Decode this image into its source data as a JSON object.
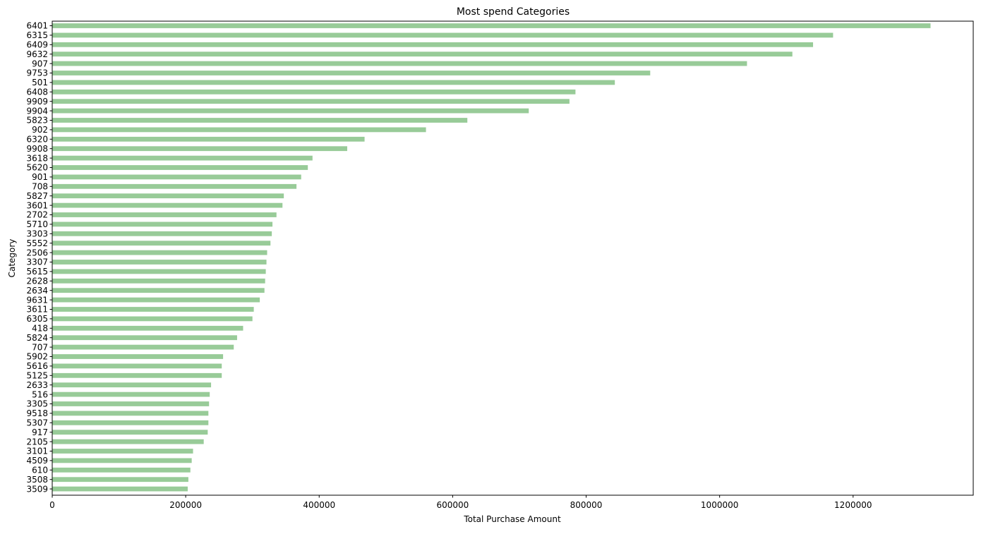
{
  "chart_data": {
    "type": "bar",
    "orientation": "horizontal",
    "title": "Most spend Categories",
    "xlabel": "Total Purchase Amount",
    "ylabel": "Category",
    "xlim": [
      0,
      1380000
    ],
    "xticks": [
      0,
      200000,
      400000,
      600000,
      800000,
      1000000,
      1200000
    ],
    "xtick_labels": [
      "0",
      "200000",
      "400000",
      "600000",
      "800000",
      "1000000",
      "1200000"
    ],
    "grid": false,
    "bar_color": "#98cb98",
    "categories": [
      "6401",
      "6315",
      "6409",
      "9632",
      "907",
      "9753",
      "501",
      "6408",
      "9909",
      "9904",
      "5823",
      "902",
      "6320",
      "9908",
      "3618",
      "5620",
      "901",
      "708",
      "5827",
      "3601",
      "2702",
      "5710",
      "3303",
      "5552",
      "2506",
      "3307",
      "5615",
      "2628",
      "2634",
      "9631",
      "3611",
      "6305",
      "418",
      "5824",
      "707",
      "5902",
      "5616",
      "5125",
      "2633",
      "516",
      "3305",
      "9518",
      "5307",
      "917",
      "2105",
      "3101",
      "4509",
      "610",
      "3508",
      "3509"
    ],
    "values": [
      1316000,
      1170000,
      1140000,
      1109000,
      1041000,
      896000,
      843000,
      784000,
      775000,
      714000,
      622000,
      560000,
      468000,
      442000,
      390000,
      383000,
      373000,
      366000,
      347000,
      345000,
      336000,
      330000,
      329000,
      327000,
      322000,
      321000,
      320000,
      319000,
      318000,
      311000,
      302000,
      300000,
      286000,
      277000,
      272000,
      256000,
      254000,
      254000,
      238000,
      236000,
      235000,
      234000,
      234000,
      233000,
      227000,
      211000,
      209000,
      207000,
      204000,
      203000
    ]
  }
}
